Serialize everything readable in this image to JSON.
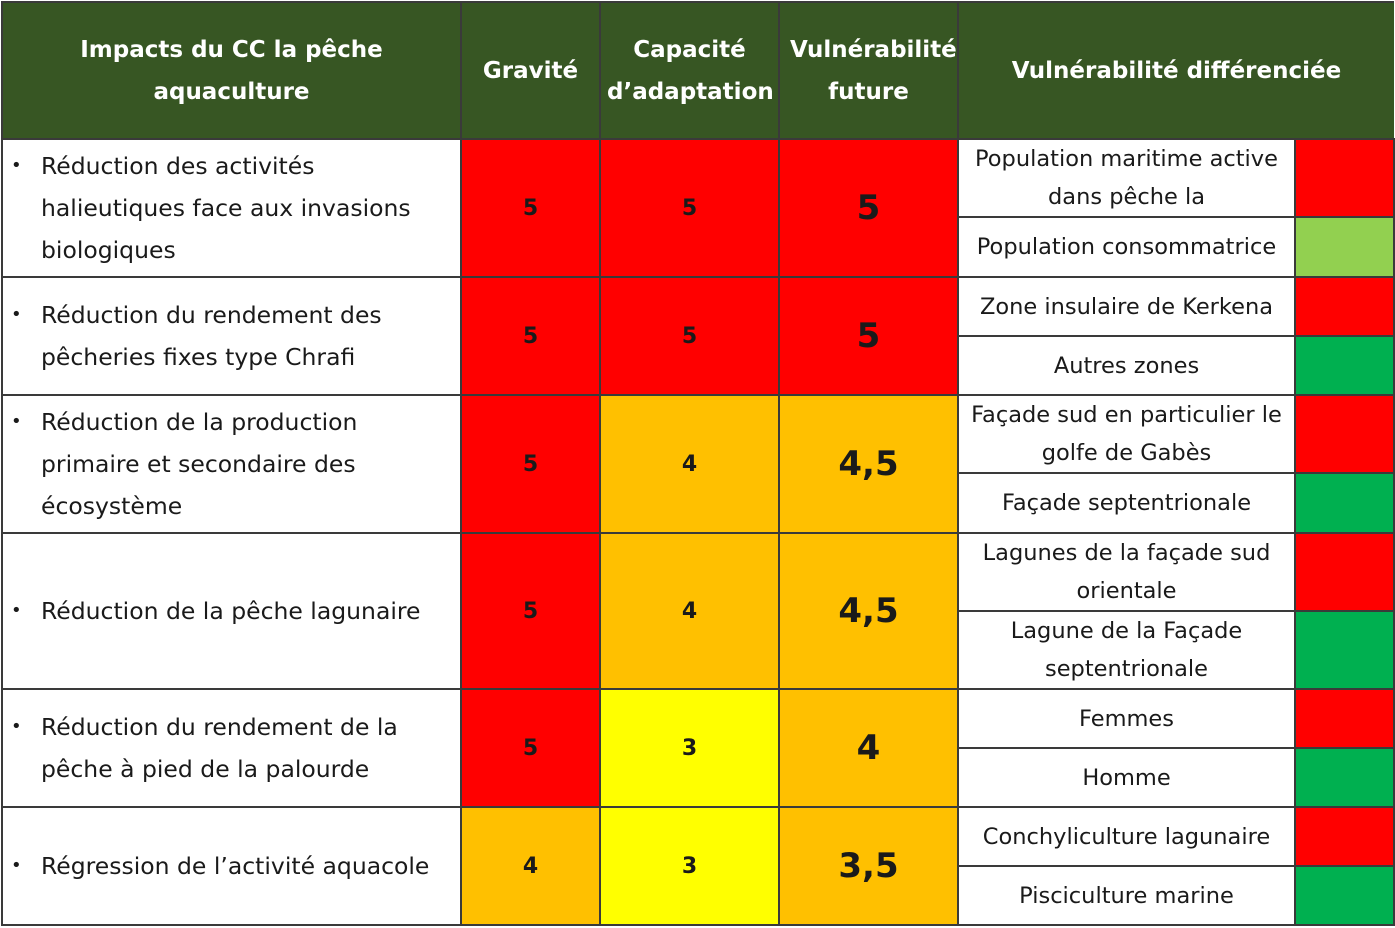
{
  "headers": {
    "impact": "Impacts du CC la pêche aquaculture",
    "gravite": "Gravité",
    "capacite": "Capacité d’adaptation",
    "vulnerabilite": "Vulnérabilité future",
    "differenciee": "Vulnérabilité différenciée"
  },
  "colors": {
    "header_bg": "#375623",
    "red": "#ff0000",
    "orange": "#ffc000",
    "yellow": "#ffff00",
    "green": "#00b050",
    "light_green": "#92d050"
  },
  "rows": [
    {
      "impact": "Réduction des activités halieutiques face aux invasions biologiques",
      "gravite": "5",
      "capacite": "5",
      "vulnerabilite": "5",
      "groups": [
        {
          "label": "Population maritime active dans pêche la",
          "color": "red"
        },
        {
          "label": "Population consommatrice",
          "color": "light-green"
        }
      ]
    },
    {
      "impact": "Réduction du rendement des pêcheries fixes type Chrafi",
      "gravite": "5",
      "capacite": "5",
      "vulnerabilite": "5",
      "groups": [
        {
          "label": "Zone insulaire de Kerkena",
          "color": "red"
        },
        {
          "label": "Autres zones",
          "color": "green"
        }
      ]
    },
    {
      "impact": "Réduction de la production primaire et secondaire des écosystème",
      "gravite": "5",
      "capacite": "4",
      "vulnerabilite": "4,5",
      "groups": [
        {
          "label": "Façade sud en particulier le golfe de Gabès",
          "color": "red"
        },
        {
          "label": "Façade septentrionale",
          "color": "green"
        }
      ]
    },
    {
      "impact": "Réduction de la pêche lagunaire",
      "gravite": "5",
      "capacite": "4",
      "vulnerabilite": "4,5",
      "groups": [
        {
          "label": "Lagunes de la façade sud orientale",
          "color": "red"
        },
        {
          "label": "Lagune de la Façade septentrionale",
          "color": "green"
        }
      ]
    },
    {
      "impact": "Réduction du rendement de la pêche à pied de la palourde",
      "gravite": "5",
      "capacite": "3",
      "vulnerabilite": "4",
      "groups": [
        {
          "label": "Femmes",
          "color": "red"
        },
        {
          "label": "Homme",
          "color": "green"
        }
      ]
    },
    {
      "impact": "Régression de l’activité aquacole",
      "gravite": "4",
      "capacite": "3",
      "vulnerabilite": "3,5",
      "groups": [
        {
          "label": "Conchyliculture lagunaire",
          "color": "red"
        },
        {
          "label": "Pisciculture marine",
          "color": "green"
        }
      ]
    }
  ]
}
